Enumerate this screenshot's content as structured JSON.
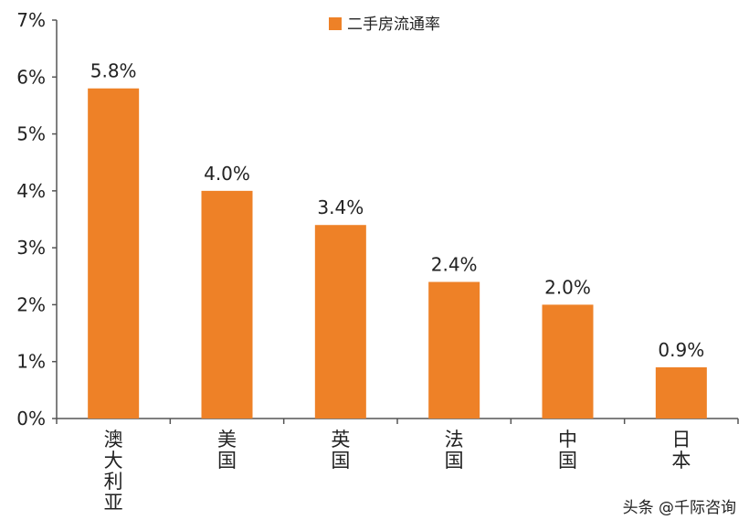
{
  "chart_data": {
    "type": "bar",
    "categories": [
      "澳大利亚",
      "美国",
      "英国",
      "法国",
      "中国",
      "日本"
    ],
    "series": [
      {
        "name": "二手房流通率",
        "values": [
          5.8,
          4.0,
          3.4,
          2.4,
          2.0,
          0.9
        ]
      }
    ],
    "data_labels": [
      "5.8%",
      "4.0%",
      "3.4%",
      "2.4%",
      "2.0%",
      "0.9%"
    ],
    "y_ticks": [
      "0%",
      "1%",
      "2%",
      "3%",
      "4%",
      "5%",
      "6%",
      "7%"
    ],
    "ylim": [
      0,
      7
    ],
    "grid": false,
    "legend_position": "top",
    "bar_color": "#ee8127"
  },
  "watermark": "头条 @千际咨询"
}
